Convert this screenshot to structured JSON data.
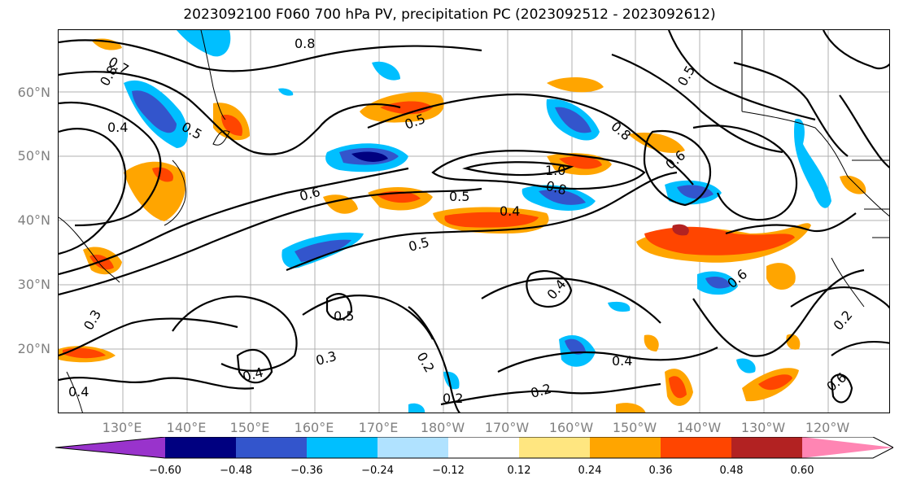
{
  "title": "2023092100 F060 700 hPa PV, precipitation PC (2023092512 - 2023092612)",
  "lat_labels": [
    "60°N",
    "50°N",
    "40°N",
    "30°N",
    "20°N"
  ],
  "lon_labels": [
    "130°E",
    "140°E",
    "150°E",
    "160°E",
    "170°E",
    "180°W",
    "170°W",
    "160°W",
    "150°W",
    "140°W",
    "130°W",
    "120°W"
  ],
  "contour_labels": [
    "0.8",
    "0.7",
    "0.8",
    "0.4",
    "0.5",
    "0.5",
    "0.5",
    "0.8",
    "0.6",
    "1.0",
    "0.8",
    "0.6",
    "0.5",
    "0.4",
    "0.5",
    "0.4",
    "0.6",
    "0.5",
    "0.4",
    "0.3",
    "0.2",
    "0.2",
    "0.2",
    "0.3",
    "0.4",
    "0.6",
    "0.2",
    "0.4"
  ],
  "colorbar": {
    "colors": [
      "#9933cc",
      "#000080",
      "#3355cc",
      "#00bfff",
      "#b0e2ff",
      "#ffffff",
      "#ffe680",
      "#ffa500",
      "#ff4500",
      "#b22222",
      "#ff85b3"
    ],
    "tick_labels": [
      "−0.60",
      "−0.48",
      "−0.36",
      "−0.24",
      "−0.12",
      "0.12",
      "0.24",
      "0.36",
      "0.48",
      "0.60"
    ]
  }
}
